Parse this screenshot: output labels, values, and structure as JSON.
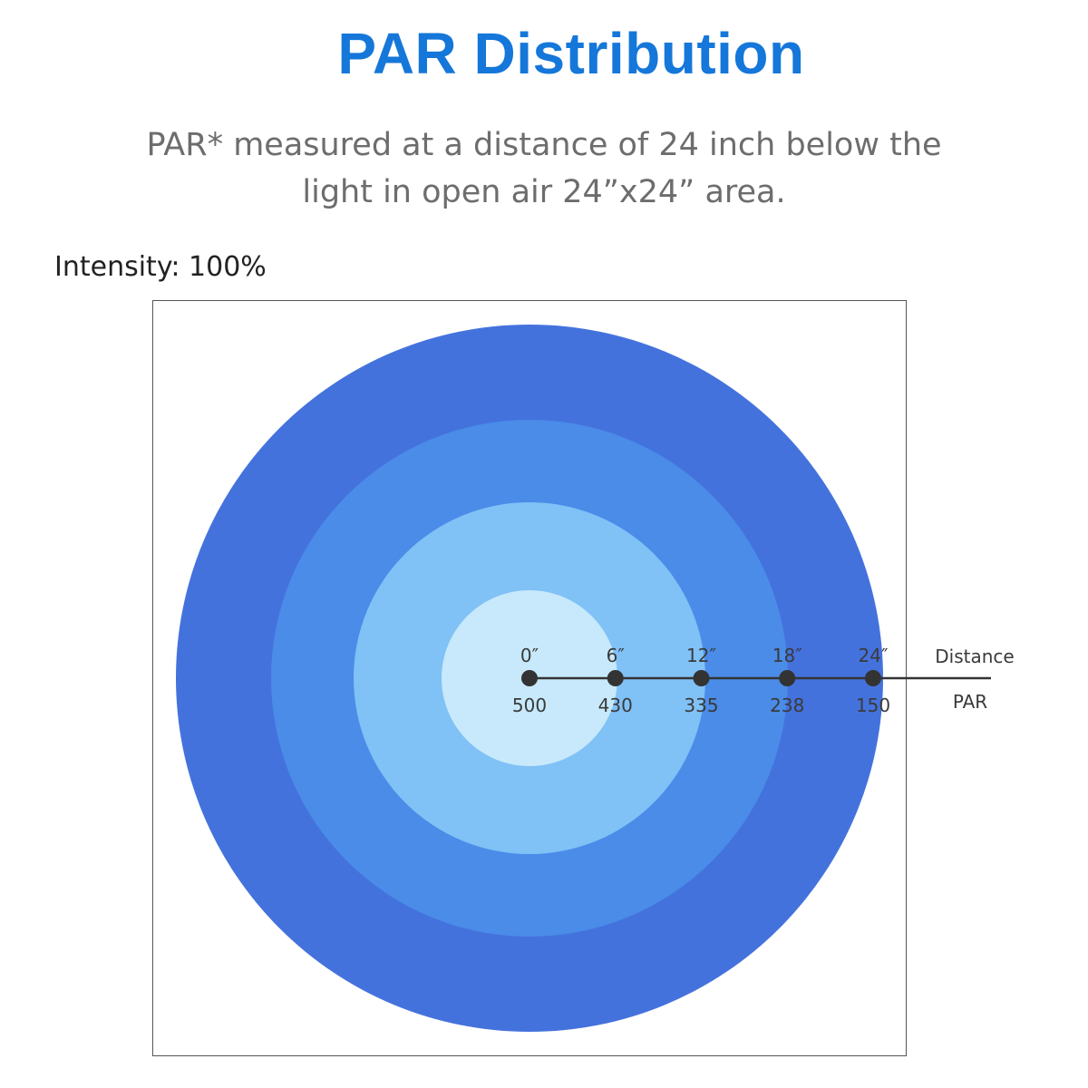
{
  "title": "PAR Distribution",
  "subtitle_line1": "PAR* measured at a distance of 24 inch below the",
  "subtitle_line2": "light in open air 24”x24” area.",
  "intensity_label": "Intensity: 100%",
  "chart_data": {
    "type": "radial",
    "x_label": "Distance",
    "y_label": "PAR",
    "distance_labels": [
      "0″",
      "6″",
      "12″",
      "18″",
      "24″"
    ],
    "distances_in": [
      0,
      6,
      12,
      18,
      24
    ],
    "par_values": [
      500,
      430,
      335,
      238,
      150
    ],
    "ring_colors": [
      "#c7e9fb",
      "#80c1f6",
      "#4a8ce8",
      "#4472dd"
    ],
    "line_color": "#333333",
    "frame_color": "#555555"
  }
}
